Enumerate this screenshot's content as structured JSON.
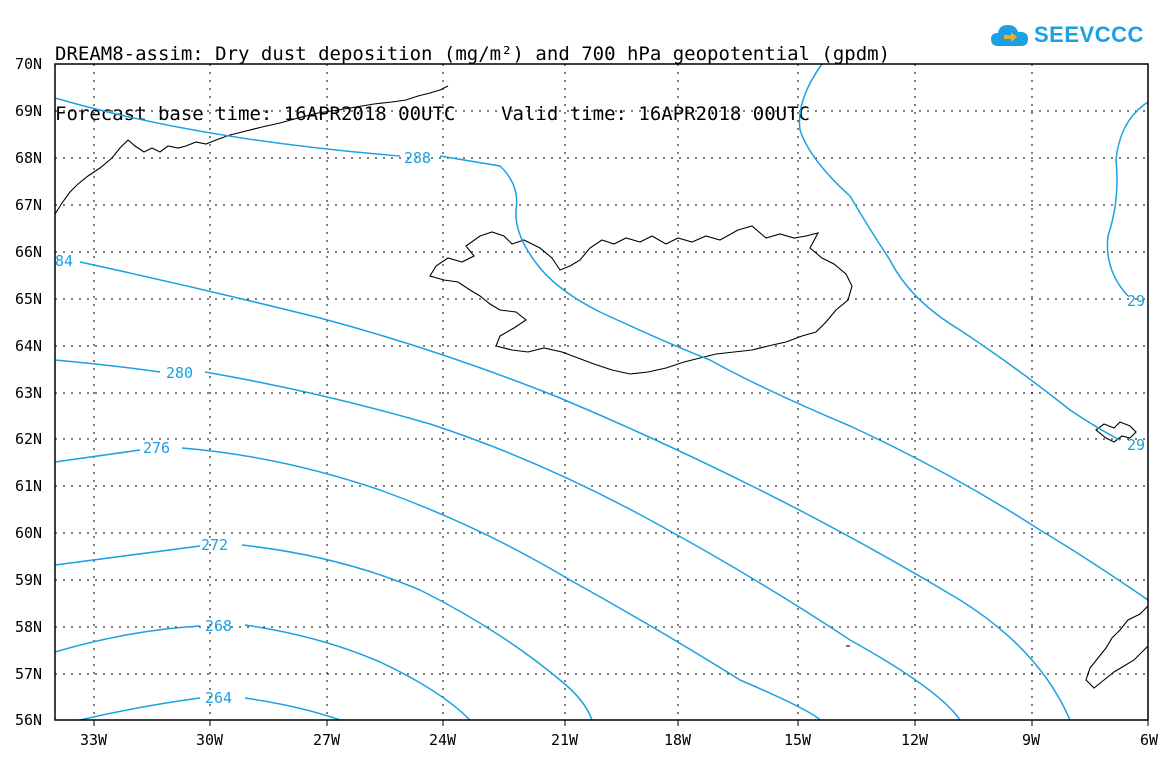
{
  "header": {
    "title": "DREAM8-assim: Dry dust deposition (mg/m²) and 700 hPa geopotential (gpdm)",
    "subtitle": "Forecast base time: 16APR2018 00UTC    Valid time: 16APR2018 00UTC"
  },
  "logo": {
    "text": "SEEVCCC",
    "icon": "cloud-icon",
    "color": "#1ba1e2"
  },
  "map": {
    "lat_labels": [
      "70N",
      "69N",
      "68N",
      "67N",
      "66N",
      "65N",
      "64N",
      "63N",
      "62N",
      "61N",
      "60N",
      "59N",
      "58N",
      "57N",
      "56N"
    ],
    "lon_labels": [
      "33W",
      "30W",
      "27W",
      "24W",
      "21W",
      "18W",
      "15W",
      "12W",
      "9W",
      "6W"
    ],
    "contour_color": "#1ba1e2",
    "contour_labels": [
      "288",
      "84",
      "280",
      "276",
      "272",
      "268",
      "264",
      "29",
      "29"
    ]
  }
}
